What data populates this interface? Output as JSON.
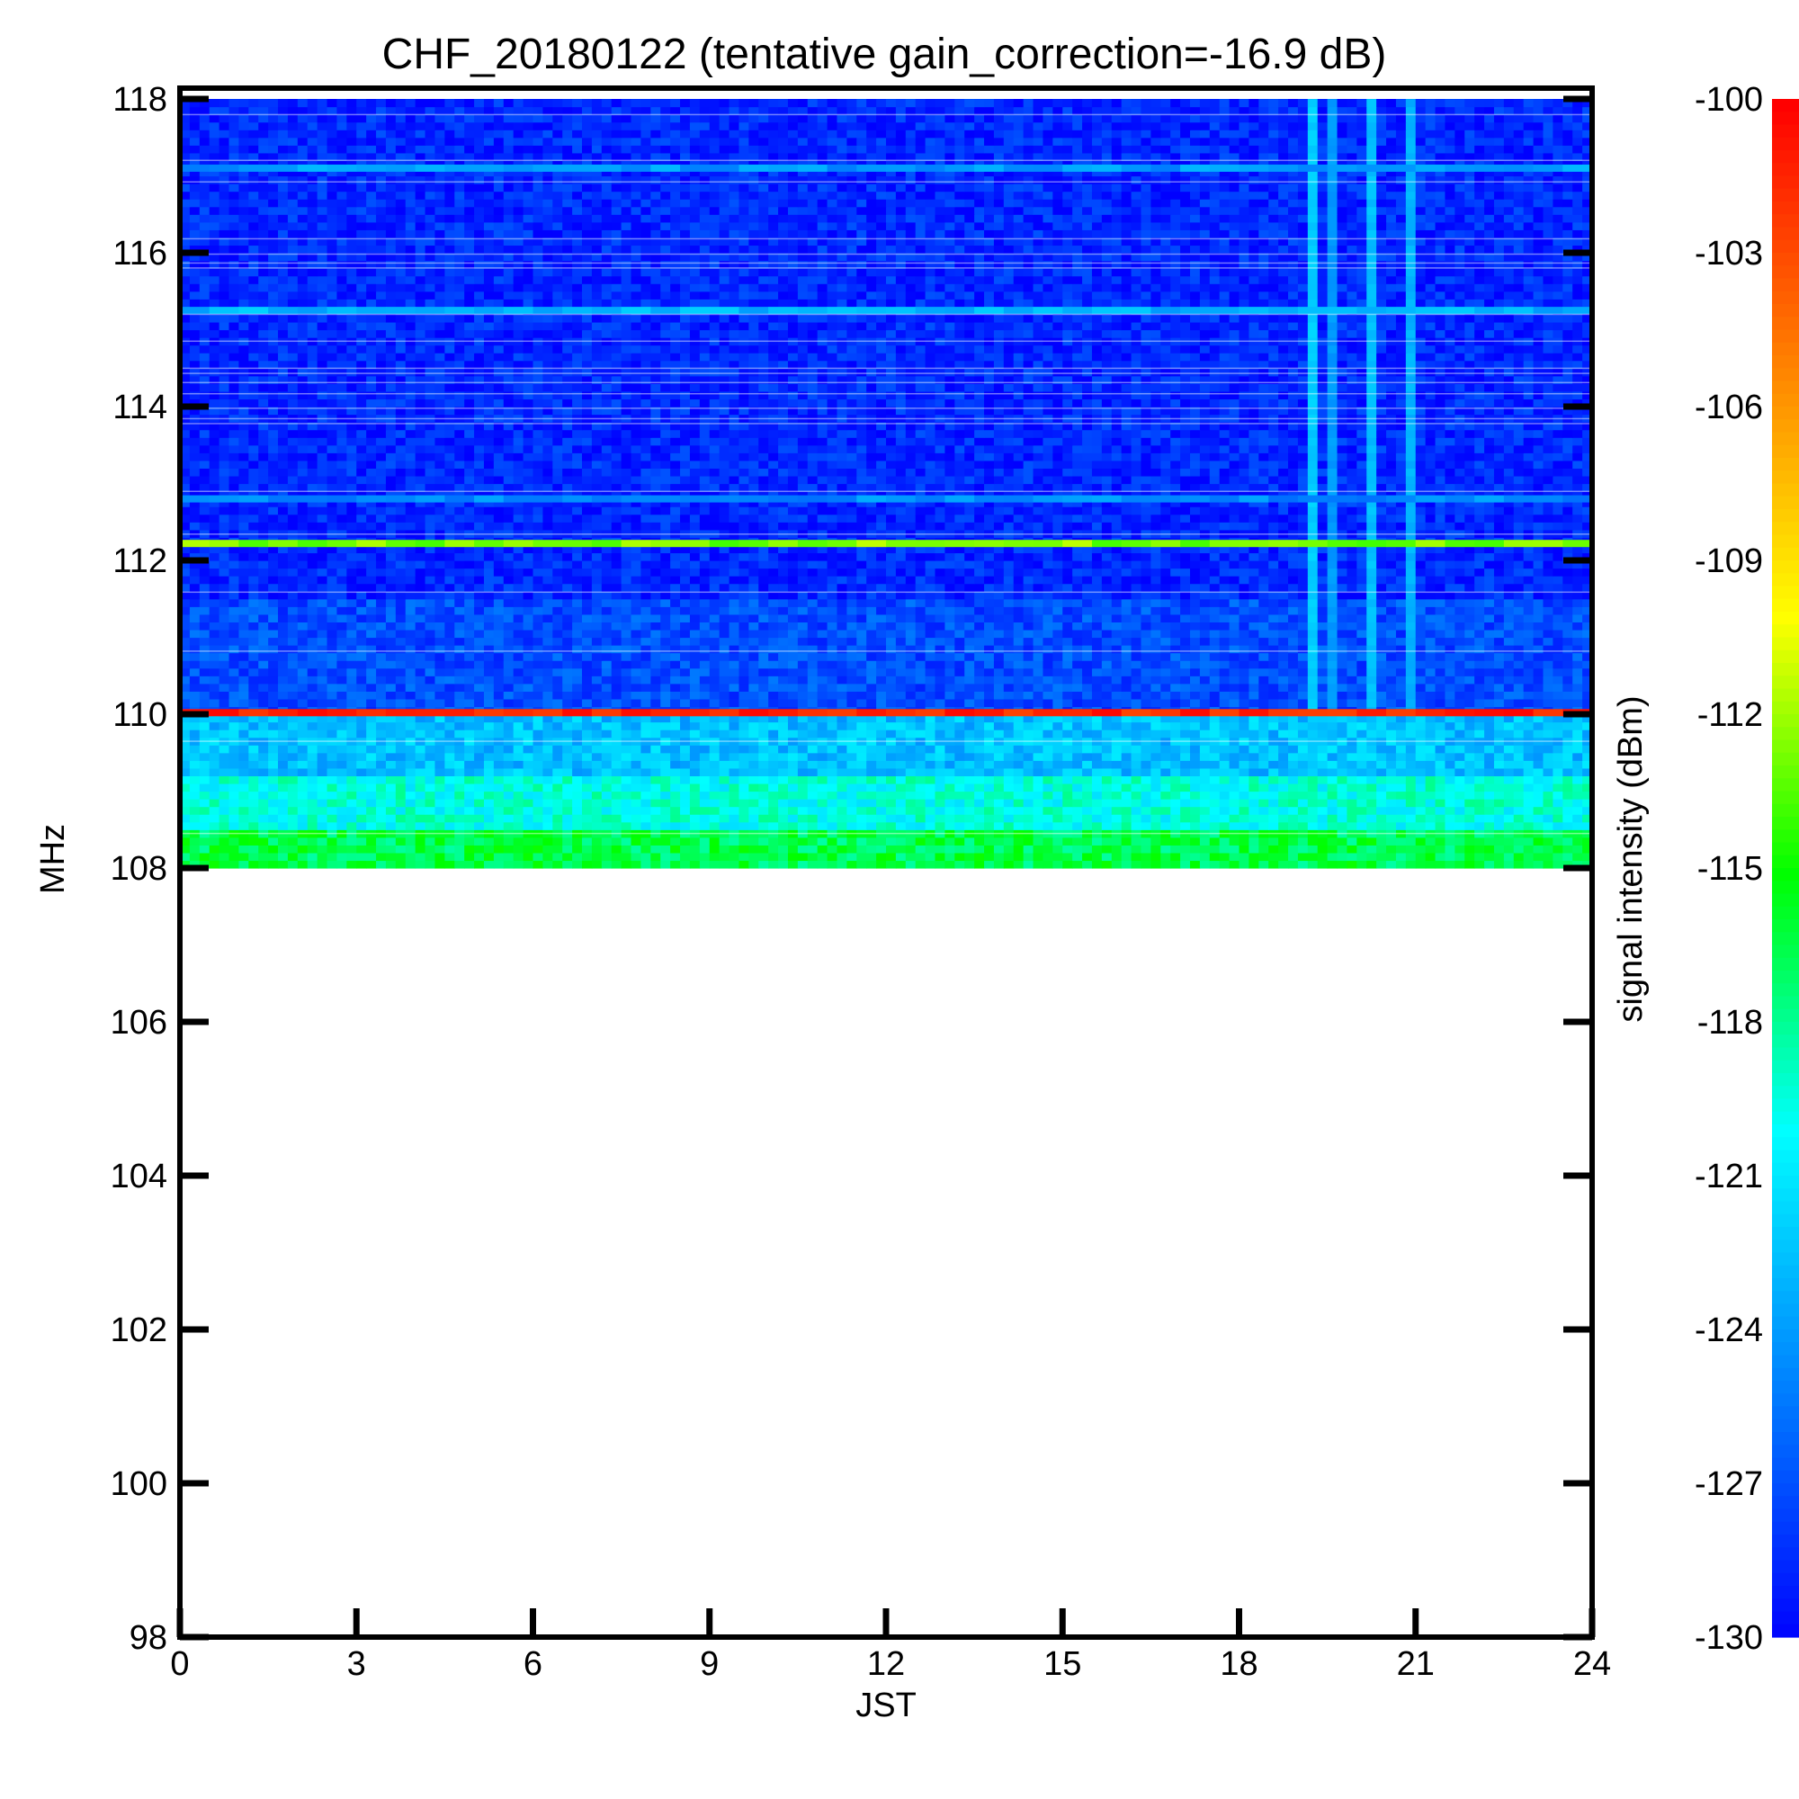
{
  "chart_data": {
    "type": "heatmap",
    "title": "CHF_20180122 (tentative gain_correction=-16.9 dB)",
    "xlabel": "JST",
    "ylabel": "MHz",
    "colorbar_label": "signal intensity (dBm)",
    "xlim": [
      0,
      24
    ],
    "ylim": [
      98,
      118
    ],
    "x_ticks": [
      0,
      3,
      6,
      9,
      12,
      15,
      18,
      21,
      24
    ],
    "x_tick_labels": [
      "0",
      "3",
      "6",
      "9",
      "12",
      "15",
      "18",
      "21",
      "24"
    ],
    "y_ticks": [
      98,
      100,
      102,
      104,
      106,
      108,
      110,
      112,
      114,
      116,
      118
    ],
    "y_tick_labels": [
      "98",
      "100",
      "102",
      "104",
      "106",
      "108",
      "110",
      "112",
      "114",
      "116",
      "118"
    ],
    "colorbar_range": [
      -130,
      -100
    ],
    "colorbar_ticks": [
      -100,
      -103,
      -106,
      -109,
      -112,
      -115,
      -118,
      -121,
      -124,
      -127,
      -130
    ],
    "colorbar_tick_labels": [
      "-100",
      "-103",
      "-106",
      "-109",
      "-112",
      "-115",
      "-118",
      "-121",
      "-124",
      "-127",
      "-130"
    ],
    "colormap": [
      "#0000ff",
      "#0080ff",
      "#00ffff",
      "#00ff00",
      "#ffff00",
      "#ff8000",
      "#ff0000"
    ],
    "data_frequency_range": [
      108,
      118
    ],
    "background_profile": [
      {
        "freq_from": 108.0,
        "freq_to": 108.5,
        "dbm": -116.5
      },
      {
        "freq_from": 108.5,
        "freq_to": 109.2,
        "dbm": -119.5
      },
      {
        "freq_from": 109.2,
        "freq_to": 110.0,
        "dbm": -122.5
      },
      {
        "freq_from": 110.0,
        "freq_to": 111.5,
        "dbm": -127.0
      },
      {
        "freq_from": 111.5,
        "freq_to": 118.0,
        "dbm": -128.5
      }
    ],
    "horizontal_lines": [
      {
        "freq": 110.02,
        "dbm": -101.5
      },
      {
        "freq": 112.22,
        "dbm": -112.5
      },
      {
        "freq": 115.25,
        "dbm": -123.0
      },
      {
        "freq": 117.1,
        "dbm": -124.0
      },
      {
        "freq": 112.8,
        "dbm": -124.5
      }
    ],
    "vertical_lines": [
      {
        "jst": 19.2,
        "dbm": -122.0
      },
      {
        "jst": 19.6,
        "dbm": -124.0
      },
      {
        "jst": 20.25,
        "dbm": -122.5
      },
      {
        "jst": 20.9,
        "dbm": -123.0
      }
    ]
  }
}
